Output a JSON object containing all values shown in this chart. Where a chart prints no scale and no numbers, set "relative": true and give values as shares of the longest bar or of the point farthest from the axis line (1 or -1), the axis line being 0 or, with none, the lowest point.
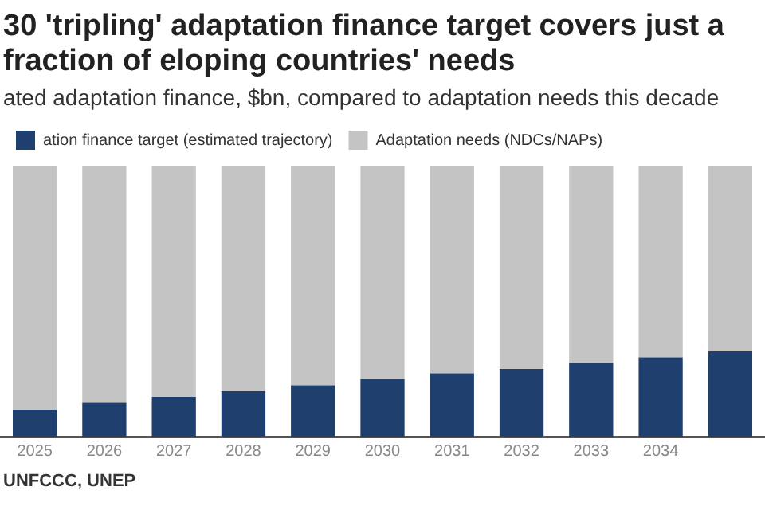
{
  "chart_data": {
    "type": "bar",
    "title": "30 'tripling' adaptation finance target covers just a fraction of eloping countries' needs",
    "subtitle": "ated adaptation finance, $bn, compared to adaptation needs this decade",
    "categories": [
      "2025",
      "2026",
      "2027",
      "2028",
      "2029",
      "2030",
      "2031",
      "2032",
      "2033",
      "2034",
      null
    ],
    "stacked": true,
    "relative": true,
    "legend": "top left",
    "grid": false,
    "series": [
      {
        "name": "ation finance target (estimated trajectory)",
        "color": "#1f3f6e",
        "values": [
          0.1,
          0.125,
          0.147,
          0.168,
          0.19,
          0.212,
          0.234,
          0.25,
          0.272,
          0.293,
          0.315
        ]
      },
      {
        "name": "Adaptation needs (NDCs/NAPs)",
        "color": "#c4c4c4",
        "values": [
          0.9,
          0.875,
          0.853,
          0.832,
          0.81,
          0.788,
          0.766,
          0.75,
          0.728,
          0.707,
          0.685
        ]
      }
    ],
    "annotations": [
      "UNFCCC, UNEP"
    ]
  }
}
